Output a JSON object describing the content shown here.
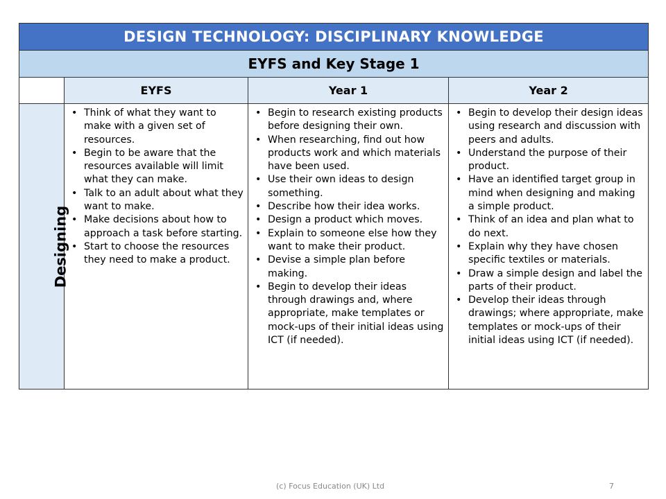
{
  "title": "DESIGN TECHNOLOGY: DISCIPLINARY KNOWLEDGE",
  "subtitle": "EYFS and Key Stage 1",
  "columns": [
    "EYFS",
    "Year 1",
    "Year 2"
  ],
  "row_label": "Designing",
  "colors": {
    "title_bg": "#4472c4",
    "subtitle_bg": "#bdd7ee",
    "header_bg": "#deebf7"
  },
  "cells": {
    "eyfs": [
      "Think of what they want to make with a given set of resources.",
      "Begin to be aware that the resources available will limit what they can make.",
      "Talk to an adult about what they want to make.",
      "Make decisions about how to approach a task before starting.",
      "Start to choose the resources they need to make a product."
    ],
    "year1": [
      "Begin to research existing products before designing their own.",
      "When researching, find out how products work and which materials have been used.",
      "Use their own ideas to design something.",
      "Describe how their idea works.",
      "Design a product which moves.",
      "Explain to someone else how they want to make their product.",
      "Devise a simple plan before making.",
      "Begin to develop their ideas through drawings and, where appropriate, make templates or mock-ups of their initial ideas using ICT (if needed)."
    ],
    "year2": [
      "Begin to develop their design ideas using research and discussion with peers and adults.",
      "Understand the purpose of their product.",
      "Have an identified target group in mind when designing and making a simple product.",
      "Think of an idea and plan what to do next.",
      "Explain why they have chosen specific textiles or materials.",
      "Draw a simple design and label the parts of their product.",
      "Develop their ideas through drawings; where appropriate, make templates or mock-ups of their initial ideas using ICT (if needed)."
    ]
  },
  "footer": {
    "copyright": "(c) Focus Education (UK) Ltd",
    "page_number": "7"
  }
}
